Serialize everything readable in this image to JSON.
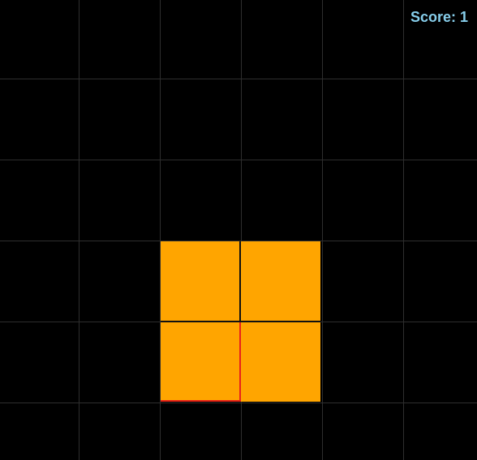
{
  "score": {
    "label": "Score:",
    "value": "1"
  },
  "colors": {
    "background": "#000000",
    "grid_line": "#2e2e2e",
    "block_fill": "#ffa500",
    "block_highlight": "#e8231a",
    "score_text": "#87ceeb"
  },
  "board": {
    "columns": 6,
    "rows": 6
  },
  "piece": {
    "type": "O",
    "cells": [
      {
        "col": 2,
        "row": 3
      },
      {
        "col": 3,
        "row": 3
      },
      {
        "col": 2,
        "row": 4
      },
      {
        "col": 3,
        "row": 4
      }
    ]
  }
}
